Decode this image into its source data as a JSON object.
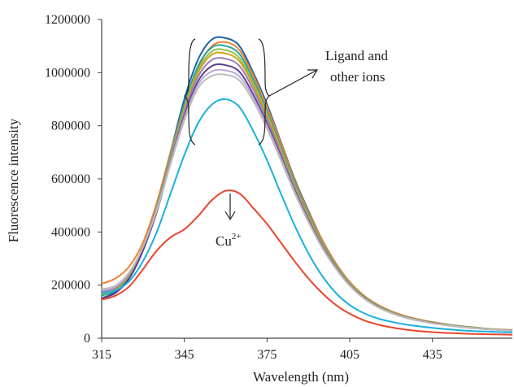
{
  "chart_data": {
    "type": "line",
    "title": "",
    "xlabel": "Wavelength (nm)",
    "ylabel": "Fluorescence intensity",
    "xlim": [
      315,
      464
    ],
    "ylim": [
      0,
      1200000
    ],
    "x_ticks": [
      315,
      345,
      375,
      405,
      435
    ],
    "y_ticks": [
      0,
      200000,
      400000,
      600000,
      800000,
      1000000,
      1200000
    ],
    "grid": false,
    "legend": "none",
    "x": [
      315,
      320,
      325,
      330,
      335,
      340,
      345,
      350,
      355,
      360,
      365,
      370,
      375,
      380,
      385,
      390,
      395,
      400,
      405,
      410,
      415,
      420,
      425,
      430,
      435,
      440,
      445,
      450,
      455,
      460,
      464
    ],
    "series": [
      {
        "color": "#1f5fa8",
        "values": [
          150000,
          175000,
          230000,
          340000,
          500000,
          700000,
          900000,
          1050000,
          1125000,
          1130000,
          1100000,
          1000000,
          880000,
          740000,
          600000,
          480000,
          370000,
          280000,
          210000,
          160000,
          125000,
          100000,
          82000,
          70000,
          60000,
          52000,
          46000,
          40000,
          35000,
          32000,
          30000
        ]
      },
      {
        "color": "#f08030",
        "values": [
          205000,
          225000,
          270000,
          360000,
          510000,
          700000,
          880000,
          1020000,
          1100000,
          1115000,
          1085000,
          990000,
          870000,
          735000,
          595000,
          475000,
          370000,
          282000,
          212000,
          162000,
          127000,
          102000,
          84000,
          71000,
          61000,
          53000,
          46000,
          41000,
          36000,
          33000,
          31000
        ]
      },
      {
        "color": "#2aa198",
        "values": [
          160000,
          180000,
          235000,
          340000,
          495000,
          690000,
          880000,
          1025000,
          1095000,
          1100000,
          1070000,
          975000,
          855000,
          720000,
          585000,
          465000,
          360000,
          275000,
          207000,
          158000,
          123000,
          99000,
          81000,
          69000,
          59000,
          51000,
          45000,
          40000,
          35000,
          32000,
          30000
        ]
      },
      {
        "color": "#8bc34a",
        "values": [
          165000,
          183000,
          238000,
          342000,
          492000,
          682000,
          868000,
          1010000,
          1080000,
          1085000,
          1055000,
          962000,
          845000,
          712000,
          578000,
          460000,
          356000,
          272000,
          205000,
          156000,
          122000,
          98000,
          80000,
          68000,
          58000,
          50000,
          44000,
          39000,
          35000,
          31000,
          29000
        ]
      },
      {
        "color": "#d4a017",
        "values": [
          170000,
          186000,
          240000,
          343000,
          490000,
          678000,
          860000,
          1000000,
          1068000,
          1072000,
          1043000,
          952000,
          836000,
          705000,
          572000,
          455000,
          352000,
          269000,
          203000,
          155000,
          121000,
          97000,
          80000,
          68000,
          58000,
          50000,
          44000,
          39000,
          34000,
          31000,
          29000
        ]
      },
      {
        "color": "#9c7bb8",
        "values": [
          175000,
          190000,
          243000,
          344000,
          488000,
          672000,
          850000,
          985000,
          1048000,
          1052000,
          1025000,
          937000,
          824000,
          696000,
          566000,
          450000,
          349000,
          267000,
          201000,
          154000,
          120000,
          96000,
          79000,
          67000,
          57000,
          49000,
          43000,
          38000,
          34000,
          31000,
          29000
        ]
      },
      {
        "color": "#5b3f8c",
        "values": [
          150000,
          170000,
          225000,
          330000,
          476000,
          660000,
          835000,
          968000,
          1025000,
          1028000,
          1003000,
          918000,
          808000,
          684000,
          557000,
          444000,
          344000,
          264000,
          199000,
          152000,
          119000,
          95000,
          78000,
          66000,
          57000,
          49000,
          43000,
          38000,
          34000,
          31000,
          28000
        ]
      },
      {
        "color": "#b9a9d6",
        "values": [
          180000,
          194000,
          246000,
          344000,
          484000,
          660000,
          828000,
          955000,
          1005000,
          1008000,
          985000,
          905000,
          798000,
          677000,
          552000,
          440000,
          342000,
          262000,
          198000,
          151000,
          118000,
          95000,
          78000,
          66000,
          56000,
          49000,
          43000,
          38000,
          34000,
          31000,
          28000
        ]
      },
      {
        "color": "#bdbdbd",
        "values": [
          185000,
          198000,
          248000,
          344000,
          482000,
          655000,
          820000,
          942000,
          988000,
          992000,
          970000,
          893000,
          789000,
          670000,
          547000,
          437000,
          340000,
          261000,
          197000,
          151000,
          118000,
          95000,
          78000,
          66000,
          56000,
          49000,
          43000,
          38000,
          34000,
          31000,
          28000
        ]
      },
      {
        "color": "#1ab0e0",
        "values": [
          170000,
          180000,
          215000,
          290000,
          400000,
          545000,
          690000,
          810000,
          880000,
          900000,
          870000,
          780000,
          670000,
          545000,
          425000,
          320000,
          235000,
          170000,
          125000,
          95000,
          75000,
          62000,
          52000,
          45000,
          39000,
          34000,
          30000,
          27000,
          25000,
          23000,
          22000
        ]
      },
      {
        "color": "#e8452c",
        "values": [
          145000,
          160000,
          195000,
          260000,
          330000,
          380000,
          410000,
          460000,
          520000,
          555000,
          545000,
          490000,
          430000,
          360000,
          290000,
          225000,
          170000,
          125000,
          92000,
          68000,
          52000,
          41000,
          33000,
          27000,
          23000,
          20000,
          18000,
          16000,
          15000,
          14000,
          13000
        ]
      }
    ],
    "annotations": {
      "ligand_label_line1": "Ligand and",
      "ligand_label_line2": "other ions",
      "cu_label_base": "Cu",
      "cu_label_sup": "2+"
    }
  }
}
